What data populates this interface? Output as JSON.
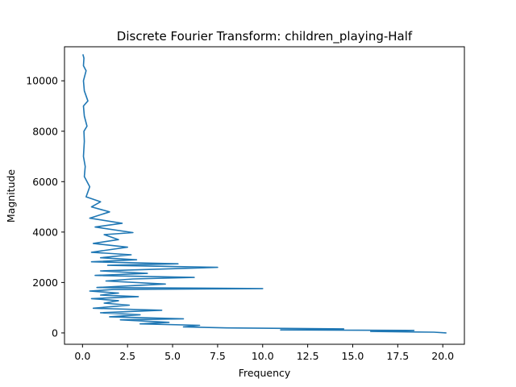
{
  "chart_data": {
    "type": "line",
    "title": "Discrete Fourier Transform: children_playing-Half",
    "xlabel": "Frequency",
    "ylabel": "Magnitude",
    "xlim": [
      -1.0,
      21.2
    ],
    "ylim": [
      -450,
      11350
    ],
    "xticks": [
      0.0,
      2.5,
      5.0,
      7.5,
      10.0,
      12.5,
      15.0,
      17.5,
      20.0
    ],
    "xtick_labels": [
      "0.0",
      "2.5",
      "5.0",
      "7.5",
      "10.0",
      "12.5",
      "15.0",
      "17.5",
      "20.0"
    ],
    "yticks": [
      0,
      2000,
      4000,
      6000,
      8000,
      10000
    ],
    "ytick_labels": [
      "0",
      "2000",
      "4000",
      "6000",
      "8000",
      "10000"
    ],
    "grid": false,
    "legend": "none",
    "series_color": "#1f77b4",
    "series": [
      {
        "name": "",
        "x": [
          20.2,
          19.5,
          16.0,
          18.4,
          11.0,
          14.5,
          8.0,
          5.6,
          6.5,
          3.2,
          4.8,
          2.1,
          5.6,
          1.5,
          3.2,
          1.0,
          4.4,
          0.6,
          2.6,
          1.2,
          2.0,
          0.5,
          3.1,
          1.0,
          2.0,
          0.4,
          1.7,
          10.0,
          0.8,
          3.0,
          4.6,
          1.3,
          2.8,
          6.2,
          0.7,
          3.6,
          1.0,
          7.5,
          1.4,
          5.3,
          0.5,
          3.0,
          1.0,
          2.7,
          0.5,
          2.5,
          0.6,
          2.0,
          1.2,
          2.8,
          0.7,
          2.2,
          0.4,
          1.5,
          0.5,
          1.0,
          0.2,
          0.4,
          0.1,
          0.15,
          0.05,
          0.1,
          0.08,
          0.25,
          0.1,
          0.05,
          0.3,
          0.1,
          0.05,
          0.2,
          0.05,
          0.08,
          0.02
        ],
        "y": [
          0,
          30,
          60,
          100,
          120,
          160,
          200,
          240,
          300,
          360,
          420,
          520,
          560,
          640,
          720,
          800,
          900,
          980,
          1100,
          1180,
          1280,
          1360,
          1440,
          1500,
          1580,
          1660,
          1720,
          1760,
          1800,
          1880,
          1940,
          2060,
          2140,
          2200,
          2280,
          2360,
          2460,
          2600,
          2680,
          2740,
          2820,
          2900,
          2980,
          3100,
          3200,
          3400,
          3550,
          3700,
          3900,
          3980,
          4200,
          4350,
          4550,
          4800,
          5000,
          5200,
          5400,
          5800,
          6200,
          6600,
          7000,
          7600,
          8000,
          8200,
          8600,
          9000,
          9200,
          9600,
          10000,
          10400,
          10600,
          10900,
          11050
        ]
      }
    ]
  }
}
